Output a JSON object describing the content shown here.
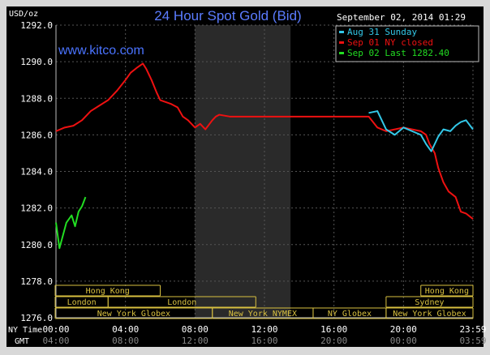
{
  "chart_data": {
    "type": "line",
    "title": "24 Hour Spot Gold (Bid)",
    "ylabel": "USD/oz",
    "timestamp": "September 02, 2014 01:29",
    "watermark": "www.kitco.com",
    "ylim": [
      1276.0,
      1292.0
    ],
    "yticks": [
      "1276.0",
      "1278.0",
      "1280.0",
      "1282.0",
      "1284.0",
      "1286.0",
      "1288.0",
      "1290.0",
      "1292.0"
    ],
    "xticks_ny": [
      "00:00",
      "04:00",
      "08:00",
      "12:00",
      "16:00",
      "20:00",
      "23:59"
    ],
    "xticks_gmt": [
      "04:00",
      "08:00",
      "12:00",
      "16:00",
      "20:00",
      "00:00",
      "03:59"
    ],
    "row_label_ny": "NY Time",
    "row_label_gmt": "GMT",
    "legend": [
      "Aug 31 Sunday",
      "Sep 01 NY closed",
      "Sep 02 Last 1282.40"
    ],
    "colors": {
      "aug31": "#33c8e8",
      "sep01": "#ee1111",
      "sep02": "#22dd22",
      "accent": "#4a73ff"
    },
    "series": [
      {
        "name": "Sep 01 NY closed",
        "color": "#ee1111",
        "x": [
          0,
          0.5,
          1,
          1.5,
          2,
          2.5,
          3,
          3.5,
          4,
          4.3,
          4.7,
          5,
          5.2,
          5.5,
          5.8,
          6,
          6.3,
          6.6,
          7,
          7.3,
          7.6,
          8,
          8.3,
          8.6,
          9,
          9.2,
          9.4,
          10,
          12,
          14,
          16,
          18,
          18.5,
          19,
          19.5,
          20,
          20.5,
          21,
          21.3,
          21.5,
          21.8,
          22,
          22.3,
          22.6,
          23,
          23.3,
          23.6,
          24
        ],
        "y": [
          1286.2,
          1286.4,
          1286.5,
          1286.8,
          1287.3,
          1287.6,
          1287.9,
          1288.4,
          1289.0,
          1289.4,
          1289.7,
          1289.9,
          1289.6,
          1289.0,
          1288.3,
          1287.9,
          1287.8,
          1287.7,
          1287.5,
          1287.0,
          1286.8,
          1286.4,
          1286.6,
          1286.3,
          1286.8,
          1287.0,
          1287.1,
          1287.0,
          1287.0,
          1287.0,
          1287.0,
          1287.0,
          1286.4,
          1286.2,
          1286.3,
          1286.4,
          1286.3,
          1286.2,
          1286.0,
          1285.5,
          1285.0,
          1284.2,
          1283.4,
          1282.9,
          1282.6,
          1281.8,
          1281.7,
          1281.4
        ]
      },
      {
        "name": "Aug 31 Sunday",
        "color": "#33c8e8",
        "x": [
          18,
          18.5,
          19,
          19.5,
          20,
          20.5,
          21,
          21.3,
          21.6,
          22,
          22.3,
          22.7,
          23,
          23.3,
          23.6,
          24
        ],
        "y": [
          1287.2,
          1287.3,
          1286.3,
          1286.0,
          1286.4,
          1286.2,
          1286.0,
          1285.5,
          1285.1,
          1285.9,
          1286.3,
          1286.2,
          1286.5,
          1286.7,
          1286.8,
          1286.3
        ]
      },
      {
        "name": "Sep 02 Last 1282.40",
        "color": "#22dd22",
        "x": [
          0,
          0.2,
          0.4,
          0.6,
          0.9,
          1.1,
          1.3,
          1.5,
          1.7
        ],
        "y": [
          1281.2,
          1279.8,
          1280.5,
          1281.2,
          1281.6,
          1281.0,
          1281.8,
          1282.1,
          1282.6
        ]
      }
    ],
    "sessions": {
      "row1": [
        {
          "label": "Hong Kong",
          "start": -1,
          "end": 6
        },
        {
          "label": "Hong Kong",
          "start": 21,
          "end": 24
        }
      ],
      "row2": [
        {
          "label": "London",
          "start": -1,
          "end": 3
        },
        {
          "label": "London",
          "start": 3,
          "end": 11.5
        },
        {
          "label": "Sydney",
          "start": 19,
          "end": 24
        }
      ],
      "row3": [
        {
          "label": "New York Globex",
          "start": -1,
          "end": 9
        },
        {
          "label": "New York NYMEX",
          "start": 9,
          "end": 14.8
        },
        {
          "label": "NY Globex",
          "start": 14.8,
          "end": 19
        },
        {
          "label": "New York Globex",
          "start": 19,
          "end": 24
        }
      ]
    }
  }
}
